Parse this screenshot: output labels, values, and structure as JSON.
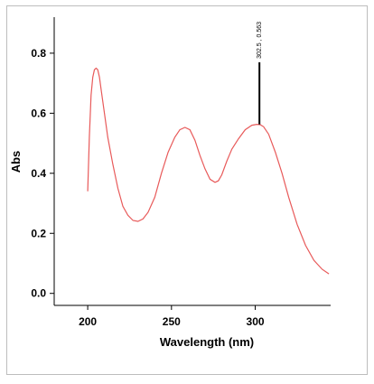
{
  "chart_data": {
    "type": "line",
    "title": "",
    "xlabel": "Wavelength (nm)",
    "ylabel": "Abs",
    "xlim": [
      180,
      345
    ],
    "ylim": [
      -0.04,
      0.92
    ],
    "xticks": [
      200,
      250,
      300
    ],
    "yticks": [
      0.0,
      0.2,
      0.4,
      0.6,
      0.8
    ],
    "x_tick_labels": [
      "200",
      "250",
      "300"
    ],
    "y_tick_labels": [
      "0.0",
      "0.2",
      "0.4",
      "0.6",
      "0.8"
    ],
    "grid": false,
    "legend": "none",
    "line_color": "#e85a5a",
    "series": [
      {
        "x": [
          200,
          201,
          202,
          203,
          204,
          205,
          206,
          207,
          208,
          210,
          212,
          215,
          218,
          221,
          224,
          227,
          230,
          233,
          236,
          240,
          244,
          248,
          252,
          255,
          258,
          261,
          264,
          267,
          270,
          273,
          276,
          278,
          280,
          283,
          286,
          290,
          294,
          298,
          301,
          303,
          305,
          308,
          312,
          316,
          320,
          325,
          330,
          335,
          340,
          344
        ],
        "y": [
          0.34,
          0.52,
          0.66,
          0.72,
          0.745,
          0.75,
          0.745,
          0.72,
          0.68,
          0.6,
          0.52,
          0.43,
          0.35,
          0.29,
          0.26,
          0.243,
          0.24,
          0.248,
          0.27,
          0.32,
          0.4,
          0.47,
          0.52,
          0.545,
          0.553,
          0.545,
          0.51,
          0.46,
          0.415,
          0.38,
          0.37,
          0.375,
          0.395,
          0.44,
          0.48,
          0.515,
          0.545,
          0.56,
          0.563,
          0.562,
          0.555,
          0.53,
          0.47,
          0.4,
          0.32,
          0.23,
          0.16,
          0.11,
          0.08,
          0.065
        ]
      }
    ],
    "annotations": [
      {
        "x": 302.5,
        "y": 0.563,
        "y_top": 0.77,
        "label": "302.5 , 0.563"
      }
    ]
  }
}
